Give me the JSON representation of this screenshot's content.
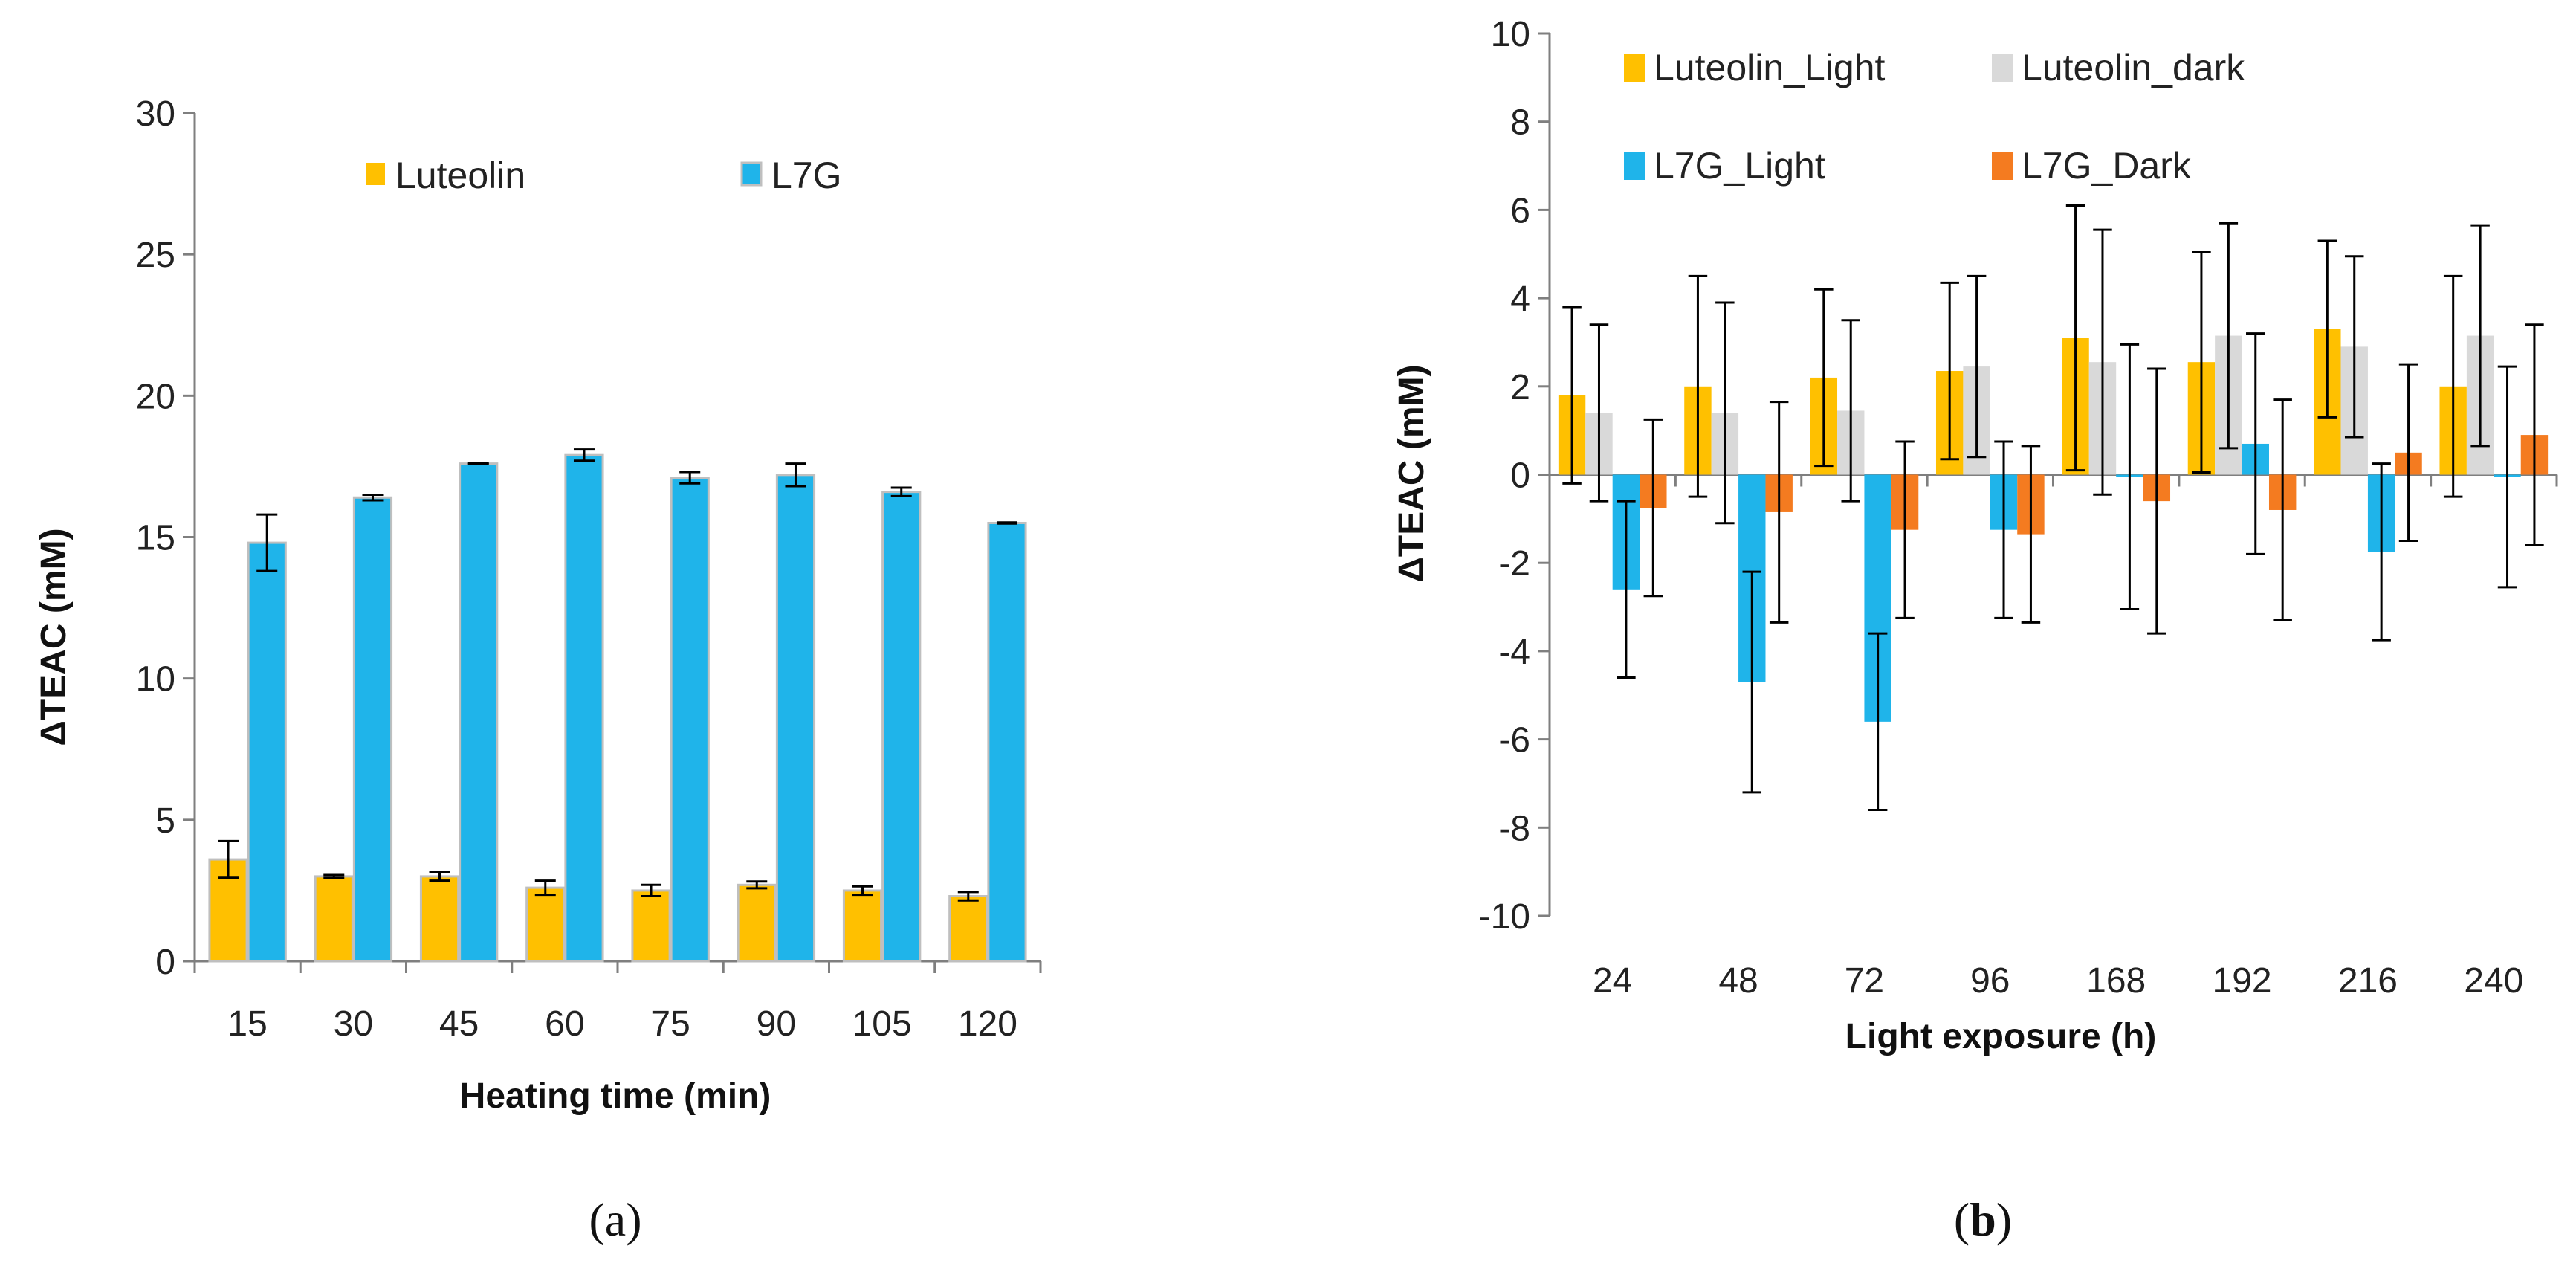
{
  "colors": {
    "luteolin": "#FFC000",
    "l7g": "#1FB4EA",
    "luteolin_dark": "#D9D9D9",
    "l7g_dark": "#F47B20",
    "axis": "#7F7F7F",
    "errorbar": "#000000"
  },
  "chart_data": [
    {
      "type": "bar",
      "panel_label": "a",
      "title": "",
      "xlabel": "Heating time (min)",
      "ylabel": "ΔTEAC (mM)",
      "ylim": [
        0,
        30
      ],
      "yticks": [
        0,
        5,
        10,
        15,
        20,
        25,
        30
      ],
      "categories": [
        "15",
        "30",
        "45",
        "60",
        "75",
        "90",
        "105",
        "120"
      ],
      "legend_position": "top",
      "series": [
        {
          "name": "Luteolin",
          "color_key": "luteolin",
          "values": [
            3.6,
            3.0,
            3.0,
            2.6,
            2.5,
            2.7,
            2.5,
            2.3
          ],
          "errors": [
            0.65,
            0.05,
            0.15,
            0.25,
            0.2,
            0.12,
            0.15,
            0.15
          ]
        },
        {
          "name": "L7G",
          "color_key": "l7g",
          "values": [
            14.8,
            16.4,
            17.6,
            17.9,
            17.1,
            17.2,
            16.6,
            15.5
          ],
          "errors": [
            1.0,
            0.1,
            0.02,
            0.2,
            0.2,
            0.4,
            0.15,
            0.02
          ]
        }
      ]
    },
    {
      "type": "bar",
      "panel_label": "b",
      "title": "",
      "xlabel": "Light exposure (h)",
      "ylabel": "ΔTEAC (mM)",
      "ylim": [
        -10,
        10
      ],
      "yticks": [
        -10,
        -8,
        -6,
        -4,
        -2,
        0,
        2,
        4,
        6,
        8,
        10
      ],
      "categories": [
        "24",
        "48",
        "72",
        "96",
        "168",
        "192",
        "216",
        "240"
      ],
      "legend_position": "top",
      "series": [
        {
          "name": "Luteolin_Light",
          "color_key": "luteolin",
          "values": [
            1.8,
            2.0,
            2.2,
            2.35,
            3.1,
            2.55,
            3.3,
            2.0
          ],
          "errors": [
            2.0,
            2.5,
            2.0,
            2.0,
            3.0,
            2.5,
            2.0,
            2.5
          ]
        },
        {
          "name": "Luteolin_dark",
          "color_key": "luteolin_dark",
          "values": [
            1.4,
            1.4,
            1.45,
            2.45,
            2.55,
            3.15,
            2.9,
            3.15
          ],
          "errors": [
            2.0,
            2.5,
            2.05,
            2.05,
            3.0,
            2.55,
            2.05,
            2.5
          ]
        },
        {
          "name": "L7G_Light",
          "color_key": "l7g",
          "values": [
            -2.6,
            -4.7,
            -5.6,
            -1.25,
            -0.05,
            0.7,
            -1.75,
            -0.05
          ],
          "errors": [
            2.0,
            2.5,
            2.0,
            2.0,
            3.0,
            2.5,
            2.0,
            2.5
          ]
        },
        {
          "name": "L7G_Dark",
          "color_key": "l7g_dark",
          "values": [
            -0.75,
            -0.85,
            -1.25,
            -1.35,
            -0.6,
            -0.8,
            0.5,
            0.9
          ],
          "errors": [
            2.0,
            2.5,
            2.0,
            2.0,
            3.0,
            2.5,
            2.0,
            2.5
          ]
        }
      ]
    }
  ]
}
